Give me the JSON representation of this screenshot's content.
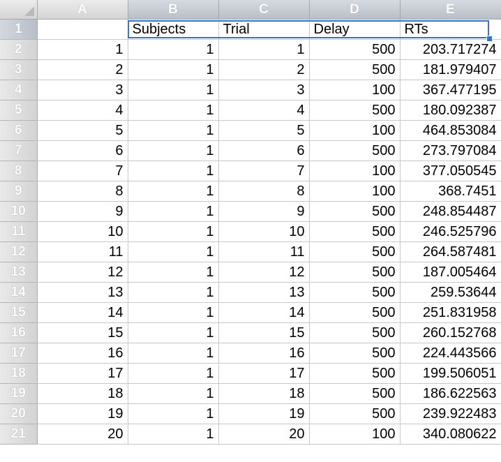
{
  "columns": [
    "A",
    "B",
    "C",
    "D",
    "E"
  ],
  "header_cells": [
    "",
    "Subjects",
    "Trial",
    "Delay",
    "RTs"
  ],
  "row_numbers": [
    "1",
    "2",
    "3",
    "4",
    "5",
    "6",
    "7",
    "8",
    "9",
    "10",
    "11",
    "12",
    "13",
    "14",
    "15",
    "16",
    "17",
    "18",
    "19",
    "20",
    "21"
  ],
  "rows": [
    [
      "1",
      "1",
      "1",
      "500",
      "203.717274"
    ],
    [
      "2",
      "1",
      "2",
      "500",
      "181.979407"
    ],
    [
      "3",
      "1",
      "3",
      "100",
      "367.477195"
    ],
    [
      "4",
      "1",
      "4",
      "500",
      "180.092387"
    ],
    [
      "5",
      "1",
      "5",
      "100",
      "464.853084"
    ],
    [
      "6",
      "1",
      "6",
      "500",
      "273.797084"
    ],
    [
      "7",
      "1",
      "7",
      "100",
      "377.050545"
    ],
    [
      "8",
      "1",
      "8",
      "100",
      "368.7451"
    ],
    [
      "9",
      "1",
      "9",
      "500",
      "248.854487"
    ],
    [
      "10",
      "1",
      "10",
      "500",
      "246.525796"
    ],
    [
      "11",
      "1",
      "11",
      "500",
      "264.587481"
    ],
    [
      "12",
      "1",
      "12",
      "500",
      "187.005464"
    ],
    [
      "13",
      "1",
      "13",
      "500",
      "259.53644"
    ],
    [
      "14",
      "1",
      "14",
      "500",
      "251.831958"
    ],
    [
      "15",
      "1",
      "15",
      "500",
      "260.152768"
    ],
    [
      "16",
      "1",
      "16",
      "500",
      "224.443566"
    ],
    [
      "17",
      "1",
      "17",
      "500",
      "199.506051"
    ],
    [
      "18",
      "1",
      "18",
      "500",
      "186.622563"
    ],
    [
      "19",
      "1",
      "19",
      "500",
      "239.922483"
    ],
    [
      "20",
      "1",
      "20",
      "100",
      "340.080622"
    ]
  ],
  "colors": {
    "selection": "#3b73c4",
    "gridline": "#c8c8c8",
    "header_bg": "#d9d9d9"
  },
  "icons": {
    "corner": "select-all-triangle-icon"
  }
}
